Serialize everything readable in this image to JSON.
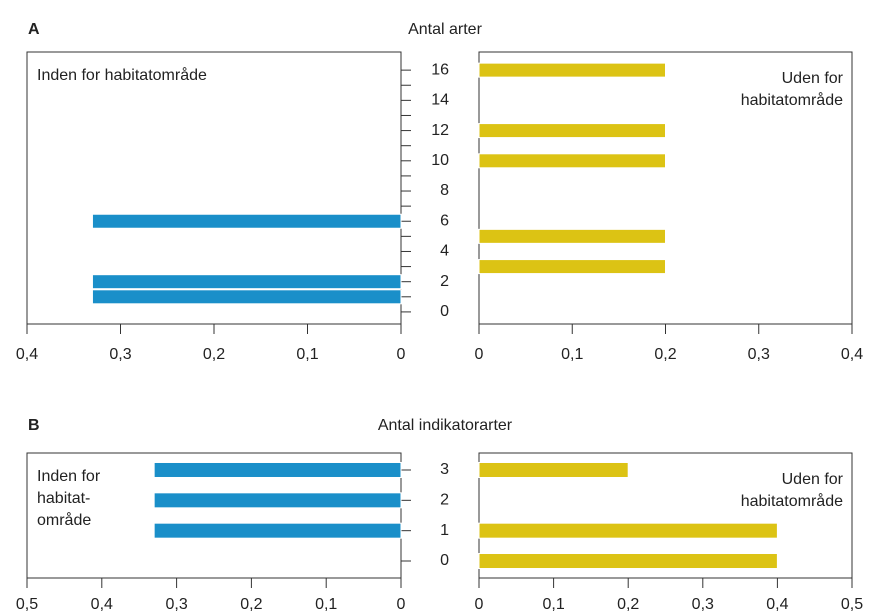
{
  "chart_data": [
    {
      "type": "bar",
      "orientation": "horizontal",
      "label": "A",
      "title": "Antal arter",
      "ylim": [
        -0.8,
        17.2
      ],
      "yticks": [
        0,
        2,
        4,
        6,
        8,
        10,
        12,
        14,
        16
      ],
      "yminorticks": [
        1,
        3,
        5,
        7,
        9,
        11,
        13,
        15
      ],
      "left": {
        "annotation": [
          "Inden for habitatområde"
        ],
        "color": "#1a8fc9",
        "xreversed": true,
        "xlim": [
          0,
          0.4
        ],
        "xticks": [
          {
            "value": 0.4,
            "label": "0,4"
          },
          {
            "value": 0.3,
            "label": "0,3"
          },
          {
            "value": 0.2,
            "label": "0,2"
          },
          {
            "value": 0.1,
            "label": "0,1"
          },
          0
        ],
        "y": [
          1,
          2,
          6
        ],
        "values": [
          0.33,
          0.33,
          0.33
        ]
      },
      "right": {
        "annotation": [
          "Uden for",
          "habitatområde"
        ],
        "color": "#dcc314",
        "xreversed": false,
        "xlim": [
          0,
          0.4
        ],
        "xticks": [
          0,
          {
            "value": 0.1,
            "label": "0,1"
          },
          {
            "value": 0.2,
            "label": "0,2"
          },
          {
            "value": 0.3,
            "label": "0,3"
          },
          {
            "value": 0.4,
            "label": "0,4"
          }
        ],
        "y": [
          3,
          5,
          10,
          12,
          16
        ],
        "values": [
          0.2,
          0.2,
          0.2,
          0.2,
          0.2
        ]
      }
    },
    {
      "type": "bar",
      "orientation": "horizontal",
      "label": "B",
      "title": "Antal indikatorarter",
      "ylim": [
        -0.56,
        3.56
      ],
      "yticks": [
        0,
        1,
        2,
        3
      ],
      "yminorticks": [],
      "left": {
        "annotation": [
          "Inden for",
          "habitat-",
          "område"
        ],
        "color": "#1a8fc9",
        "xreversed": true,
        "xlim": [
          0,
          0.5
        ],
        "xticks": [
          {
            "value": 0.5,
            "label": "0,5"
          },
          {
            "value": 0.4,
            "label": "0,4"
          },
          {
            "value": 0.3,
            "label": "0,3"
          },
          {
            "value": 0.2,
            "label": "0,2"
          },
          {
            "value": 0.1,
            "label": "0,1"
          },
          0
        ],
        "y": [
          1,
          2,
          3
        ],
        "values": [
          0.33,
          0.33,
          0.33
        ]
      },
      "right": {
        "annotation": [
          "Uden for",
          "habitatområde"
        ],
        "color": "#dcc314",
        "xreversed": false,
        "xlim": [
          0,
          0.5
        ],
        "xticks": [
          0,
          {
            "value": 0.1,
            "label": "0,1"
          },
          {
            "value": 0.2,
            "label": "0,2"
          },
          {
            "value": 0.3,
            "label": "0,3"
          },
          {
            "value": 0.4,
            "label": "0,4"
          },
          {
            "value": 0.5,
            "label": "0,5"
          }
        ],
        "y": [
          0,
          1,
          3
        ],
        "values": [
          0.4,
          0.4,
          0.2
        ]
      }
    }
  ]
}
